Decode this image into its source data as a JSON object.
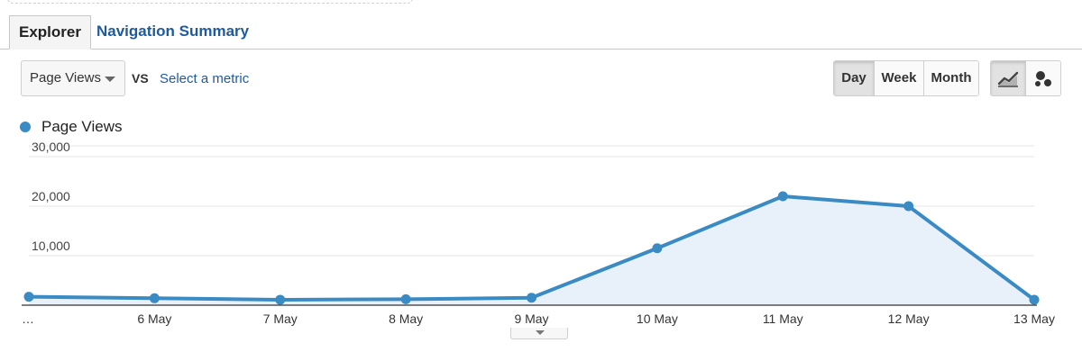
{
  "tabs": {
    "explorer": "Explorer",
    "navigation_summary": "Navigation Summary"
  },
  "toolbar": {
    "metric_select": "Page Views",
    "vs_label": "VS",
    "select_metric_link": "Select a metric",
    "granularity": {
      "day": "Day",
      "week": "Week",
      "month": "Month",
      "selected": "Day"
    },
    "chart_type_icons": [
      "line-chart-icon",
      "motion-chart-icon"
    ]
  },
  "colors": {
    "series": "#3a8ac4",
    "area_fill": "#e8f1fa",
    "grid": "#e6e6e6",
    "link": "#1e5a9c"
  },
  "chart_data": {
    "type": "area",
    "x": [
      "…",
      "6 May",
      "7 May",
      "8 May",
      "9 May",
      "10 May",
      "11 May",
      "12 May",
      "13 May"
    ],
    "series": [
      {
        "name": "Page Views",
        "values": [
          1700,
          1400,
          1100,
          1200,
          1500,
          11500,
          22000,
          20000,
          1100
        ]
      }
    ],
    "yticks": [
      "30,000",
      "20,000",
      "10,000"
    ],
    "ytick_values": [
      30000,
      20000,
      10000
    ],
    "ylim": [
      0,
      30000
    ],
    "grid": true,
    "legend": "top-left"
  }
}
